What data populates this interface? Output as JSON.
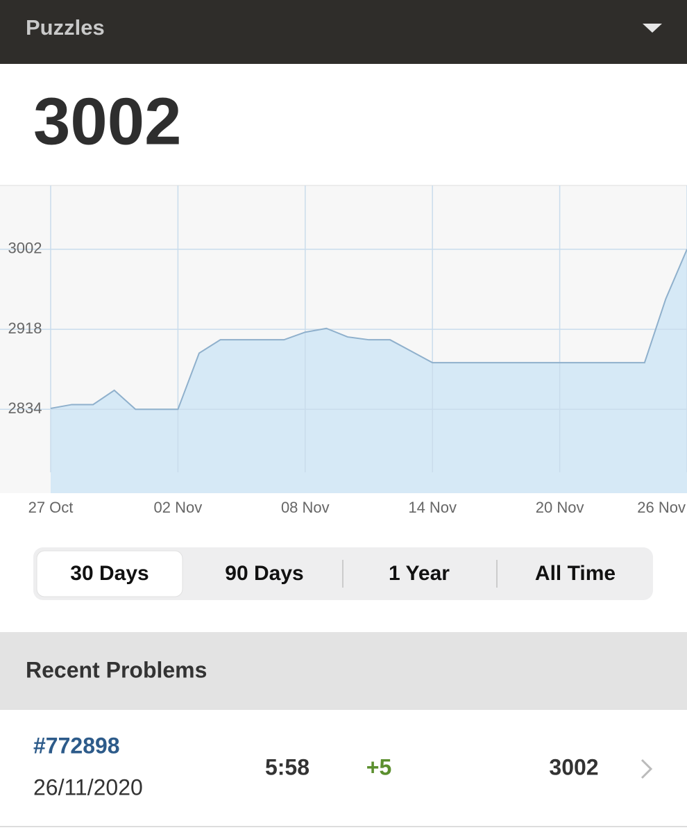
{
  "header": {
    "title": "Puzzles"
  },
  "rating": "3002",
  "chart_data": {
    "type": "area",
    "categories": [
      "27 Oct",
      null,
      null,
      null,
      null,
      null,
      "02 Nov",
      null,
      null,
      null,
      null,
      null,
      "08 Nov",
      null,
      null,
      null,
      null,
      null,
      "14 Nov",
      null,
      null,
      null,
      null,
      null,
      "20 Nov",
      null,
      null,
      null,
      null,
      null,
      "26 Nov"
    ],
    "values": [
      2835,
      2839,
      2839,
      2854,
      2834,
      2834,
      2834,
      2893,
      2907,
      2907,
      2907,
      2907,
      2915,
      2919,
      2910,
      2907,
      2907,
      2895,
      2883,
      2883,
      2883,
      2883,
      2883,
      2883,
      2883,
      2883,
      2883,
      2883,
      2883,
      2950,
      3002
    ],
    "color": "#8fb0cc",
    "fill_color": "#d6e9f6",
    "ylim": [
      2746,
      3069
    ],
    "yticks": [
      2834,
      2918,
      3002
    ],
    "grid": true
  },
  "tabs": [
    "30 Days",
    "90 Days",
    "1 Year",
    "All Time"
  ],
  "recent": {
    "title": "Recent Problems",
    "rows": [
      {
        "id": "#772898",
        "date": "26/11/2020",
        "time": "5:58",
        "change": "+5",
        "rating": "3002"
      }
    ]
  }
}
